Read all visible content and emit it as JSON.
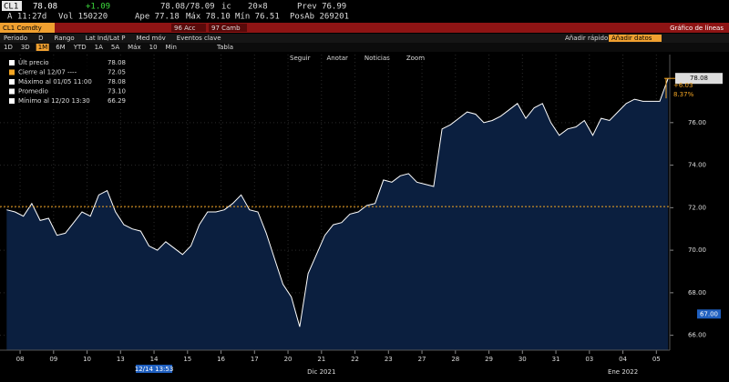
{
  "header": {
    "ticker": "CL1",
    "last": "78.08",
    "change": "+1.09",
    "bid_ask": "78.08/78.09",
    "ic": "ic",
    "size": "20×8",
    "prev": "Prev 76.99",
    "time": "A 11:27d",
    "vol": "Vol 150220",
    "open": "Ape 77.18",
    "high": "Máx 78.10",
    "low": "Mín 76.51",
    "open_int": "PosAb 269201"
  },
  "toolbar": {
    "security": "CL1 Comdty",
    "actions": "96 Acc",
    "change": "97 Camb",
    "view": "Gráfico de líneas",
    "settings": [
      "Periodo",
      "D",
      "Rango",
      "Lat Ind/Lat P",
      "Med móv",
      "Eventos clave"
    ],
    "add_quick": "Añadir rápido",
    "add_data": "Añadir datos",
    "ranges": [
      "1D",
      "3D",
      "1M",
      "6M",
      "YTD",
      "1A",
      "5A",
      "Máx",
      "10",
      "Min"
    ],
    "table": "Tabla",
    "tools": [
      "Seguir",
      "Anotar",
      "Noticias",
      "Zoom"
    ]
  },
  "chart_data": {
    "type": "line",
    "color": "#ffffff",
    "fill": "#0b1f3f",
    "x": [
      -0.4,
      -0.15,
      0.1,
      0.35,
      0.6,
      0.85,
      1.1,
      1.35,
      1.6,
      1.85,
      2.1,
      2.35,
      2.6,
      2.85,
      3.1,
      3.35,
      3.6,
      3.85,
      4.1,
      4.35,
      4.6,
      4.85,
      5.1,
      5.35,
      5.6,
      5.85,
      6.1,
      6.35,
      6.6,
      6.85,
      7.1,
      7.35,
      7.6,
      7.85,
      8.1,
      8.35,
      8.6,
      8.85,
      9.1,
      9.35,
      9.6,
      9.85,
      10.1,
      10.35,
      10.6,
      10.85,
      11.1,
      11.35,
      11.6,
      11.85,
      12.1,
      12.35,
      12.6,
      12.85,
      13.1,
      13.35,
      13.6,
      13.85,
      14.1,
      14.35,
      14.6,
      14.85,
      15.1,
      15.35,
      15.6,
      15.85,
      16.1,
      16.35,
      16.6,
      16.85,
      17.1,
      17.35,
      17.6,
      17.85,
      18.1,
      18.35,
      18.6,
      18.85,
      19.1,
      19.35
    ],
    "values": [
      71.9,
      71.8,
      71.6,
      72.2,
      71.4,
      71.5,
      70.7,
      70.8,
      71.3,
      71.8,
      71.6,
      72.6,
      72.8,
      71.8,
      71.2,
      71.0,
      70.9,
      70.2,
      70.0,
      70.4,
      70.1,
      69.8,
      70.2,
      71.2,
      71.8,
      71.8,
      71.9,
      72.2,
      72.6,
      71.9,
      71.8,
      70.8,
      69.6,
      68.4,
      67.8,
      66.4,
      68.9,
      69.8,
      70.7,
      71.2,
      71.3,
      71.7,
      71.8,
      72.1,
      72.2,
      73.3,
      73.2,
      73.5,
      73.6,
      73.2,
      73.1,
      73.0,
      75.7,
      75.9,
      76.2,
      76.5,
      76.4,
      76.0,
      76.1,
      76.3,
      76.6,
      76.9,
      76.2,
      76.7,
      76.9,
      76.0,
      75.4,
      75.7,
      75.8,
      76.1,
      75.4,
      76.2,
      76.1,
      76.5,
      76.9,
      77.1,
      77.0,
      77.0,
      77.0,
      78.08
    ],
    "xlim": [
      -0.6,
      19.4
    ],
    "ylim": [
      65.3,
      79.2
    ],
    "xticks": [
      {
        "value": 0,
        "label": "08"
      },
      {
        "value": 1,
        "label": "09"
      },
      {
        "value": 2,
        "label": "10"
      },
      {
        "value": 3,
        "label": "13"
      },
      {
        "value": 4,
        "label": "14"
      },
      {
        "value": 5,
        "label": "15"
      },
      {
        "value": 6,
        "label": "16"
      },
      {
        "value": 7,
        "label": "17"
      },
      {
        "value": 8,
        "label": "20"
      },
      {
        "value": 9,
        "label": "21"
      },
      {
        "value": 10,
        "label": "22"
      },
      {
        "value": 11,
        "label": "23"
      },
      {
        "value": 12,
        "label": "27"
      },
      {
        "value": 13,
        "label": "28"
      },
      {
        "value": 14,
        "label": "29"
      },
      {
        "value": 15,
        "label": "30"
      },
      {
        "value": 16,
        "label": "31"
      },
      {
        "value": 17,
        "label": "03"
      },
      {
        "value": 18,
        "label": "04"
      },
      {
        "value": 19,
        "label": "05"
      }
    ],
    "yticks": [
      {
        "value": 66,
        "label": "66.00"
      },
      {
        "value": 68,
        "label": "68.00"
      },
      {
        "value": 70,
        "label": "70.00"
      },
      {
        "value": 72,
        "label": "72.00"
      },
      {
        "value": 74,
        "label": "74.00"
      },
      {
        "value": 76,
        "label": "76.00"
      }
    ],
    "period_labels": [
      {
        "value": 9,
        "label": "Dic 2021"
      },
      {
        "value": 18,
        "label": "Ene 2022"
      }
    ],
    "cursor": {
      "value": 4,
      "label": "12/14 13:53"
    },
    "grid": true,
    "legend": {
      "names": [
        "Últ precio",
        "Cierre al 12/07 ----",
        "Máximo al 01/05 11:00",
        "Promedio",
        "Mínimo al 12/20 13:30"
      ],
      "colors": [
        "#ffffff",
        "#f5a623",
        "#ffffff",
        "#ffffff",
        "#ffffff"
      ],
      "values": [
        78.08,
        72.05,
        78.08,
        73.1,
        66.29
      ],
      "value_labels": [
        "78.08",
        "72.05",
        "78.08",
        "73.10",
        "66.29"
      ]
    },
    "reference_color": "#f5a623",
    "change_labels": [
      "+6.03",
      "8.37%"
    ],
    "marker": {
      "value": 67,
      "label": "67.00"
    }
  }
}
